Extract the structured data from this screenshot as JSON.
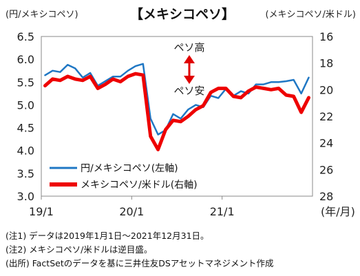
{
  "chart_data": {
    "type": "line",
    "title": "【メキシコペソ】",
    "left_axis_unit": "(円/メキシコペソ)",
    "right_axis_unit": "(メキシコペソ/米ドル)",
    "x_unit": "(年/月)",
    "x_ticks": [
      "19/1",
      "20/1",
      "21/1"
    ],
    "y_left": {
      "ticks": [
        "6.5",
        "6.0",
        "5.5",
        "5.0",
        "4.5",
        "4.0",
        "3.5",
        "3.0"
      ],
      "ylim": [
        3.0,
        6.5
      ]
    },
    "y_right": {
      "ticks": [
        "16",
        "18",
        "20",
        "22",
        "24",
        "26",
        "28"
      ],
      "ylim": [
        16,
        28
      ],
      "inverted": true
    },
    "annotations": {
      "peso_high": "ペソ高",
      "peso_low": "ペソ安"
    },
    "legend_placement": "bottom-left",
    "series": [
      {
        "name": "円/メキシコペソ(左軸)",
        "axis": "left",
        "color": "#1f77c4",
        "points": [
          [
            "2019-01",
            5.65
          ],
          [
            "2019-02",
            5.75
          ],
          [
            "2019-03",
            5.72
          ],
          [
            "2019-04",
            5.88
          ],
          [
            "2019-05",
            5.8
          ],
          [
            "2019-06",
            5.6
          ],
          [
            "2019-07",
            5.7
          ],
          [
            "2019-08",
            5.42
          ],
          [
            "2019-09",
            5.52
          ],
          [
            "2019-10",
            5.62
          ],
          [
            "2019-11",
            5.62
          ],
          [
            "2019-12",
            5.75
          ],
          [
            "2020-01",
            5.85
          ],
          [
            "2020-02",
            5.9
          ],
          [
            "2020-03",
            4.7
          ],
          [
            "2020-04",
            4.35
          ],
          [
            "2020-05",
            4.45
          ],
          [
            "2020-06",
            4.8
          ],
          [
            "2020-07",
            4.7
          ],
          [
            "2020-08",
            4.9
          ],
          [
            "2020-09",
            5.0
          ],
          [
            "2020-10",
            4.95
          ],
          [
            "2020-11",
            5.2
          ],
          [
            "2020-12",
            5.15
          ],
          [
            "2021-01",
            5.35
          ],
          [
            "2021-02",
            5.2
          ],
          [
            "2021-03",
            5.3
          ],
          [
            "2021-04",
            5.25
          ],
          [
            "2021-05",
            5.45
          ],
          [
            "2021-06",
            5.45
          ],
          [
            "2021-07",
            5.5
          ],
          [
            "2021-08",
            5.5
          ],
          [
            "2021-09",
            5.52
          ],
          [
            "2021-10",
            5.55
          ],
          [
            "2021-11",
            5.25
          ],
          [
            "2021-12",
            5.6
          ]
        ]
      },
      {
        "name": "メキシコペソ/米ドル(右軸)",
        "axis": "right",
        "color": "#ee0000",
        "points": [
          [
            "2019-01",
            19.7
          ],
          [
            "2019-02",
            19.2
          ],
          [
            "2019-03",
            19.3
          ],
          [
            "2019-04",
            19.0
          ],
          [
            "2019-05",
            19.2
          ],
          [
            "2019-06",
            19.3
          ],
          [
            "2019-07",
            19.0
          ],
          [
            "2019-08",
            19.9
          ],
          [
            "2019-09",
            19.6
          ],
          [
            "2019-10",
            19.2
          ],
          [
            "2019-11",
            19.4
          ],
          [
            "2019-12",
            19.0
          ],
          [
            "2020-01",
            18.8
          ],
          [
            "2020-02",
            18.9
          ],
          [
            "2020-03",
            23.5
          ],
          [
            "2020-04",
            24.5
          ],
          [
            "2020-05",
            23.0
          ],
          [
            "2020-06",
            22.3
          ],
          [
            "2020-07",
            22.4
          ],
          [
            "2020-08",
            22.0
          ],
          [
            "2020-09",
            21.5
          ],
          [
            "2020-10",
            21.2
          ],
          [
            "2020-11",
            20.2
          ],
          [
            "2020-12",
            19.9
          ],
          [
            "2021-01",
            19.9
          ],
          [
            "2021-02",
            20.5
          ],
          [
            "2021-03",
            20.6
          ],
          [
            "2021-04",
            20.1
          ],
          [
            "2021-05",
            19.8
          ],
          [
            "2021-06",
            19.9
          ],
          [
            "2021-07",
            20.0
          ],
          [
            "2021-08",
            19.9
          ],
          [
            "2021-09",
            20.4
          ],
          [
            "2021-10",
            20.5
          ],
          [
            "2021-11",
            21.7
          ],
          [
            "2021-12",
            20.6
          ]
        ]
      }
    ]
  },
  "notes": [
    "(注1) データは2019年1月1日～2021年12月31日。",
    "(注2) メキシコペソ/米ドルは逆目盛。",
    "(出所) FactSetのデータを基に三井住友DSアセットマネジメント作成"
  ]
}
